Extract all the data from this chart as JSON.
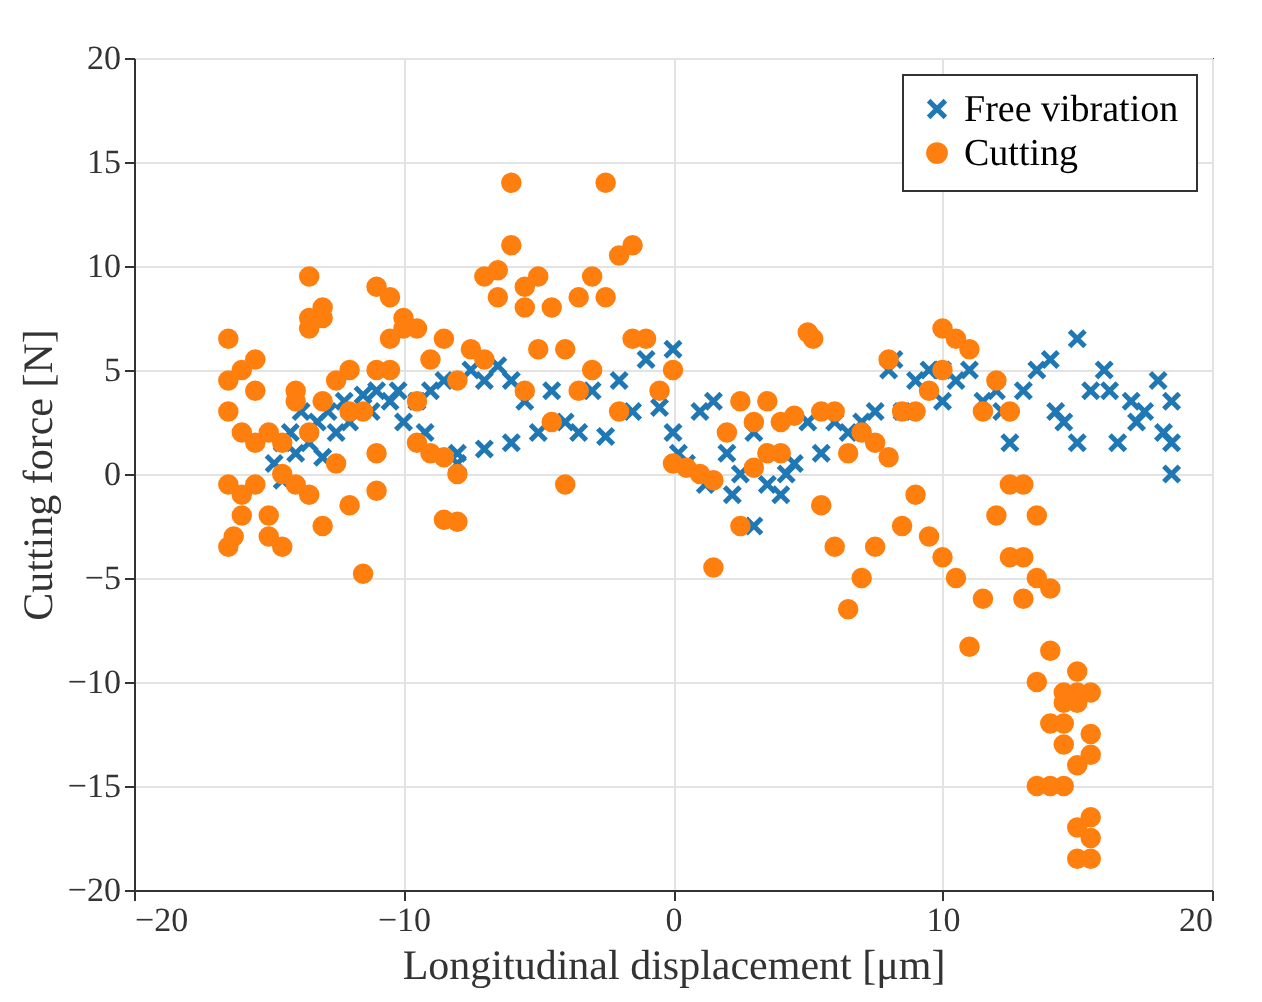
{
  "chart_data": {
    "type": "scatter",
    "xlabel": "Longitudinal displacement [μm]",
    "ylabel": "Cutting force [N]",
    "xlim": [
      -20,
      20
    ],
    "ylim": [
      -20,
      20
    ],
    "xticks": [
      -20,
      -10,
      0,
      10,
      20
    ],
    "yticks": [
      -20,
      -15,
      -10,
      -5,
      0,
      5,
      10,
      15,
      20
    ],
    "grid": true,
    "legend": "top right",
    "series": [
      {
        "name": "Free vibration",
        "color": "#1f77b4",
        "marker": "cross",
        "x": [
          -14.8,
          -14.5,
          -14.5,
          -14.2,
          -14,
          -13.8,
          -13.5,
          -13.2,
          -13,
          -12.8,
          -12.5,
          -12.2,
          -12,
          -11.5,
          -11.2,
          -11,
          -10.5,
          -10.2,
          -10,
          -9.5,
          -9.2,
          -9,
          -8.5,
          -8,
          -8,
          -7.5,
          -7,
          -7,
          -6.5,
          -6,
          -6,
          -5.5,
          -5,
          -4.5,
          -4,
          -3.5,
          -3,
          -2.5,
          -2,
          -1.5,
          -1,
          -0.5,
          0,
          0,
          0.2,
          0.5,
          1,
          1.2,
          1.5,
          2,
          2.2,
          2.5,
          3,
          3,
          3.5,
          4,
          4.2,
          4.5,
          5,
          5.5,
          6,
          6.5,
          7,
          7.5,
          8,
          8.2,
          8.5,
          9,
          9.5,
          10,
          10,
          10.5,
          11,
          11.5,
          12,
          12.2,
          12.5,
          13,
          13.5,
          14,
          14.2,
          14.5,
          15,
          15,
          15.5,
          16,
          16.2,
          16.5,
          17,
          17.2,
          17.5,
          18,
          18.2,
          18.5,
          18.5,
          18.5
        ],
        "values": [
          0.5,
          1.5,
          -0.3,
          2,
          1,
          3,
          1.5,
          2.5,
          0.8,
          3,
          2,
          3.5,
          2.5,
          3.8,
          3,
          4,
          3.5,
          4,
          2.5,
          3.5,
          2,
          4,
          4.5,
          1,
          0.5,
          5,
          1.2,
          4.5,
          5.2,
          4.5,
          1.5,
          3.5,
          2,
          4,
          2.5,
          2,
          4,
          1.8,
          4.5,
          3,
          5.5,
          3.2,
          6,
          2,
          1,
          0.5,
          3,
          -0.5,
          3.5,
          1,
          -1,
          0,
          -2.5,
          2,
          -0.5,
          -1,
          0,
          0.5,
          2.5,
          1,
          2.5,
          2,
          2.5,
          3,
          5,
          5.5,
          3,
          4.5,
          5,
          3.5,
          5,
          4.5,
          5,
          3.5,
          4,
          3,
          1.5,
          4,
          5,
          5.5,
          3,
          2.5,
          6.5,
          1.5,
          4,
          5,
          4,
          1.5,
          3.5,
          2.5,
          3,
          4.5,
          2,
          3.5,
          0,
          1.5
        ]
      },
      {
        "name": "Cutting",
        "color": "#ff7f0e",
        "marker": "circle",
        "x": [
          -16.5,
          -16.5,
          -16.5,
          -16.5,
          -16.5,
          -16.3,
          -16,
          -16,
          -16,
          -16,
          -15.5,
          -15.5,
          -15.5,
          -15.5,
          -15,
          -15,
          -15,
          -14.5,
          -14.5,
          -14.5,
          -14,
          -14,
          -14,
          -13.5,
          -13.5,
          -13.5,
          -13.5,
          -13.5,
          -13,
          -13,
          -13,
          -13,
          -12.5,
          -12.5,
          -12,
          -12,
          -12,
          -11.5,
          -11.5,
          -11,
          -11,
          -11,
          -11,
          -10.5,
          -10.5,
          -10.5,
          -10,
          -10,
          -9.5,
          -9.5,
          -9.5,
          -9,
          -9,
          -8.5,
          -8.5,
          -8.5,
          -8,
          -8,
          -8,
          -7.5,
          -7,
          -7,
          -6.5,
          -6.5,
          -6,
          -6,
          -5.5,
          -5.5,
          -5.5,
          -5,
          -5,
          -4.5,
          -4.5,
          -4,
          -4,
          -3.5,
          -3.5,
          -3,
          -3,
          -2.5,
          -2.5,
          -2,
          -2,
          -1.5,
          -1.5,
          -1,
          -0.5,
          0,
          0,
          0.5,
          1,
          1.5,
          1.5,
          2,
          2.5,
          2.5,
          3,
          3,
          3.5,
          3.5,
          4,
          4,
          4.5,
          5,
          5.2,
          5.5,
          5.5,
          6,
          6,
          6.5,
          6.5,
          7,
          7,
          7.5,
          7.5,
          8,
          8,
          8.5,
          8.5,
          9,
          9,
          9.5,
          9.5,
          10,
          10,
          10,
          10.5,
          10.5,
          11,
          11,
          11.5,
          11.5,
          12,
          12,
          12.5,
          12.5,
          12.5,
          13,
          13,
          13,
          13.5,
          13.5,
          13.5,
          13.5,
          14,
          14,
          14,
          14,
          14.5,
          14.5,
          14.5,
          14.5,
          14.5,
          15,
          15,
          15,
          15,
          15,
          15,
          15.5,
          15.5,
          15.5,
          15.5,
          15.5,
          15.5
        ],
        "values": [
          6.5,
          4.5,
          3,
          -0.5,
          -3.5,
          -3,
          5,
          2,
          -1,
          -2,
          5.5,
          4,
          1.5,
          -0.5,
          2,
          -2,
          -3,
          1.5,
          0,
          -3.5,
          4,
          3.5,
          -0.5,
          9.5,
          7.5,
          7,
          2,
          -1,
          8,
          7.5,
          3.5,
          -2.5,
          4.5,
          0.5,
          5,
          3,
          -1.5,
          3,
          -4.8,
          9,
          5,
          1,
          -0.8,
          8.5,
          6.5,
          5,
          7.5,
          7,
          7,
          3.5,
          1.5,
          5.5,
          1,
          6.5,
          0.8,
          -2.2,
          4.5,
          0,
          -2.3,
          6,
          9.5,
          5.5,
          9.8,
          8.5,
          14,
          11,
          9,
          8,
          4,
          9.5,
          6,
          8,
          2.5,
          6,
          -0.5,
          8.5,
          4,
          9.5,
          5,
          14,
          8.5,
          10.5,
          3,
          11,
          6.5,
          6.5,
          4,
          0.5,
          5,
          0.3,
          0,
          -0.3,
          -4.5,
          2,
          -2.5,
          3.5,
          2.5,
          0.3,
          3.5,
          1,
          2.5,
          1,
          2.8,
          6.8,
          6.5,
          3,
          -1.5,
          3,
          -3.5,
          -6.5,
          1,
          -5,
          2,
          -3.5,
          1.5,
          5.5,
          0.8,
          3,
          -2.5,
          3,
          -1,
          4,
          -3,
          7,
          5,
          -4,
          6.5,
          -5,
          6,
          -8.3,
          3,
          -6,
          4.5,
          -2,
          3,
          -0.5,
          -4,
          -0.5,
          -4,
          -6,
          -2,
          -5,
          -15,
          -10,
          -5.5,
          -8.5,
          -12,
          -15,
          -12,
          -13,
          -10.5,
          -15,
          -11,
          -10.5,
          -11,
          -18.5,
          -14,
          -9.5,
          -17,
          -10.5,
          -13.5,
          -16.5,
          -18.5,
          -17.5,
          -12.5
        ]
      }
    ]
  }
}
